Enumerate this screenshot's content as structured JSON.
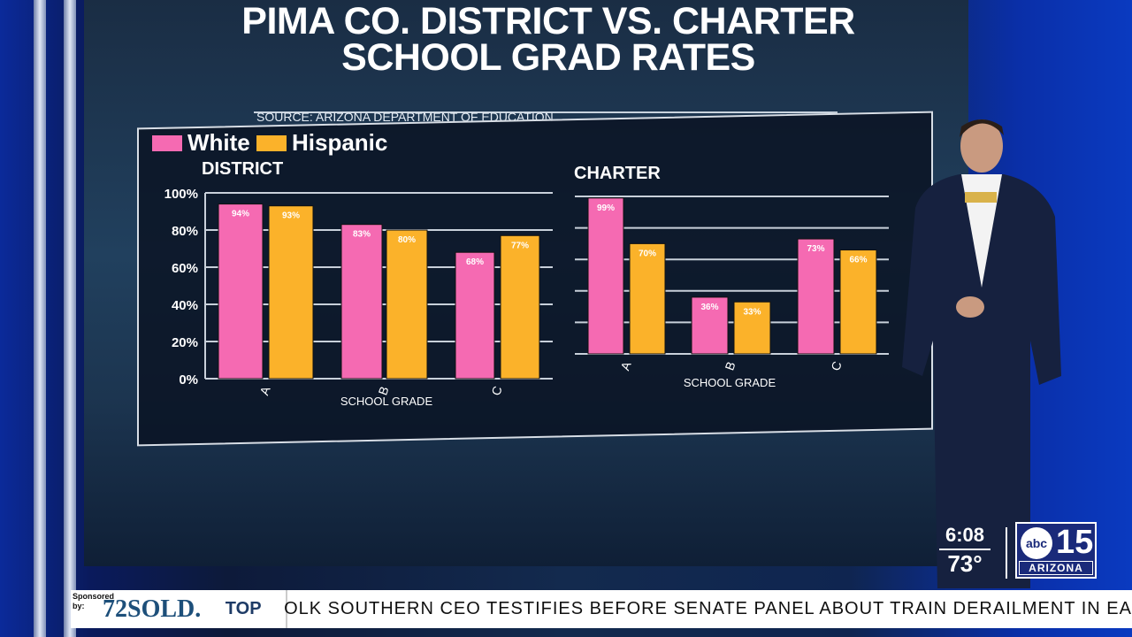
{
  "chart_data": {
    "type": "bar",
    "title": "PIMA CO. DISTRICT VS. CHARTER SCHOOL GRAD RATES",
    "source": "SOURCE: ARIZONA DEPARTMENT OF EDUCATION",
    "legend": [
      "White",
      "Hispanic"
    ],
    "legend_placement": "top-left",
    "colors": {
      "White": "#f56ab2",
      "Hispanic": "#fbb22a"
    },
    "grid": true,
    "ylim": [
      0,
      100
    ],
    "yticks": [
      "0%",
      "20%",
      "40%",
      "60%",
      "80%",
      "100%"
    ],
    "panels": [
      {
        "subtitle": "DISTRICT",
        "xlabel": "SCHOOL GRADE",
        "categories": [
          "A",
          "B",
          "C"
        ],
        "series": [
          {
            "name": "White",
            "values": [
              94,
              83,
              68
            ],
            "labels": [
              "94%",
              "83%",
              "68%"
            ]
          },
          {
            "name": "Hispanic",
            "values": [
              93,
              80,
              77
            ],
            "labels": [
              "93%",
              "80%",
              "77%"
            ]
          }
        ]
      },
      {
        "subtitle": "CHARTER",
        "xlabel": "SCHOOL GRADE",
        "categories": [
          "A",
          "B",
          "C"
        ],
        "series": [
          {
            "name": "White",
            "values": [
              99,
              36,
              73
            ],
            "labels": [
              "99%",
              "36%",
              "73%"
            ]
          },
          {
            "name": "Hispanic",
            "values": [
              70,
              33,
              66
            ],
            "labels": [
              "70%",
              "33%",
              "66%"
            ]
          }
        ]
      }
    ]
  },
  "overlay": {
    "time": "6:08",
    "temp": "73°",
    "station_abc": "abc",
    "station_num": "15",
    "station_region": "ARIZONA"
  },
  "ticker": {
    "sponsored": "Sponsored by:",
    "sponsor": "72SOLD.",
    "section": "TOP STORIES",
    "headline": "OLK SOUTHERN CEO TESTIFIES BEFORE SENATE PANEL ABOUT TRAIN DERAILMENT IN EA"
  }
}
